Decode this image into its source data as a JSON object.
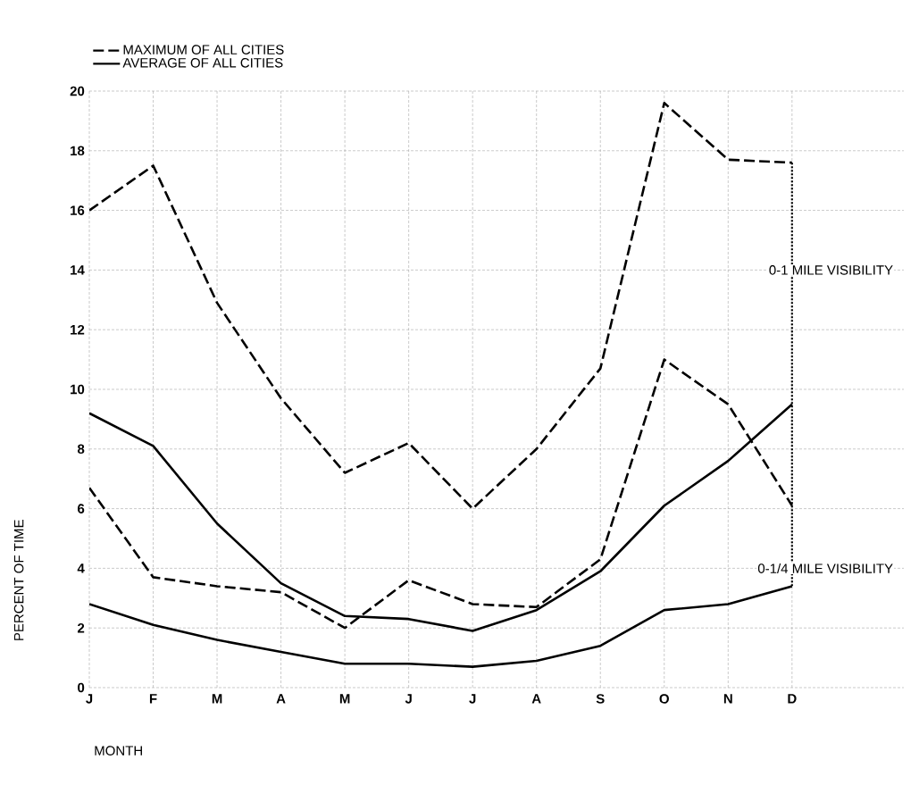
{
  "chart_data": {
    "type": "line",
    "xlabel": "MONTH",
    "ylabel": "PERCENT OF TIME",
    "categories": [
      "J",
      "F",
      "M",
      "A",
      "M",
      "J",
      "J",
      "A",
      "S",
      "O",
      "N",
      "D"
    ],
    "ylim": [
      0,
      20
    ],
    "yticks": [
      0,
      2,
      4,
      6,
      8,
      10,
      12,
      14,
      16,
      18,
      20
    ],
    "grid": true,
    "legend": "top left",
    "annotations": [
      "0-1 MILE VISIBILITY",
      "0-1/4 MILE VISIBILITY"
    ],
    "series": [
      {
        "name": "MAXIMUM OF ALL CITIES",
        "color": "#000000",
        "line_style": "dashed",
        "values": [
          16.0,
          17.5,
          12.9,
          9.7,
          7.2,
          8.2,
          6.0,
          8.0,
          10.7,
          19.6,
          17.7,
          17.6
        ]
      },
      {
        "name": "AVERAGE OF ALL CITIES",
        "color": "#000000",
        "line_style": "solid",
        "values": [
          9.2,
          8.1,
          5.5,
          3.5,
          2.4,
          2.3,
          1.9,
          2.6,
          3.9,
          6.1,
          7.6,
          9.5
        ]
      },
      {
        "color": "#000000",
        "line_style": "dashed",
        "values": [
          6.7,
          3.7,
          3.4,
          3.2,
          2.0,
          3.6,
          2.8,
          2.7,
          4.3,
          11.0,
          9.5,
          6.1
        ]
      },
      {
        "color": "#000000",
        "line_style": "solid",
        "values": [
          2.8,
          2.1,
          1.6,
          1.2,
          0.8,
          0.8,
          0.7,
          0.9,
          1.4,
          2.6,
          2.8,
          3.4
        ]
      },
      {
        "color": "#000000",
        "line_style": "dotted",
        "x": [
          "D",
          "D"
        ],
        "values": [
          17.6,
          3.4
        ]
      }
    ]
  }
}
